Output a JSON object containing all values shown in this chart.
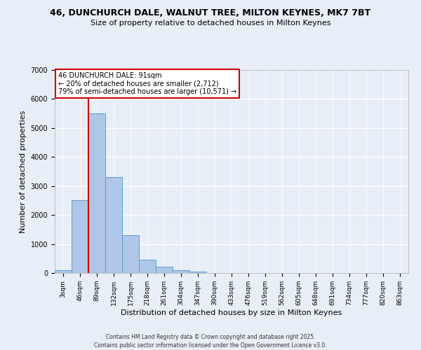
{
  "title1": "46, DUNCHURCH DALE, WALNUT TREE, MILTON KEYNES, MK7 7BT",
  "title2": "Size of property relative to detached houses in Milton Keynes",
  "xlabel": "Distribution of detached houses by size in Milton Keynes",
  "ylabel": "Number of detached properties",
  "bar_labels": [
    "3sqm",
    "46sqm",
    "89sqm",
    "132sqm",
    "175sqm",
    "218sqm",
    "261sqm",
    "304sqm",
    "347sqm",
    "390sqm",
    "433sqm",
    "476sqm",
    "519sqm",
    "562sqm",
    "605sqm",
    "648sqm",
    "691sqm",
    "734sqm",
    "777sqm",
    "820sqm",
    "863sqm"
  ],
  "bar_values": [
    100,
    2500,
    5500,
    3300,
    1300,
    450,
    220,
    100,
    50,
    0,
    0,
    0,
    0,
    0,
    0,
    0,
    0,
    0,
    0,
    0,
    0
  ],
  "bar_color": "#aec6e8",
  "bar_edge_color": "#5a9fd4",
  "annotation_text": "46 DUNCHURCH DALE: 91sqm\n← 20% of detached houses are smaller (2,712)\n79% of semi-detached houses are larger (10,571) →",
  "annotation_box_color": "#ffffff",
  "annotation_box_edge": "#cc0000",
  "vline_x_idx": 2,
  "vline_color": "#cc0000",
  "ylim": [
    0,
    7000
  ],
  "yticks": [
    0,
    1000,
    2000,
    3000,
    4000,
    5000,
    6000,
    7000
  ],
  "background_color": "#e8eef8",
  "grid_color": "#ffffff",
  "footnote1": "Contains HM Land Registry data © Crown copyright and database right 2025.",
  "footnote2": "Contains public sector information licensed under the Open Government Licence v3.0."
}
